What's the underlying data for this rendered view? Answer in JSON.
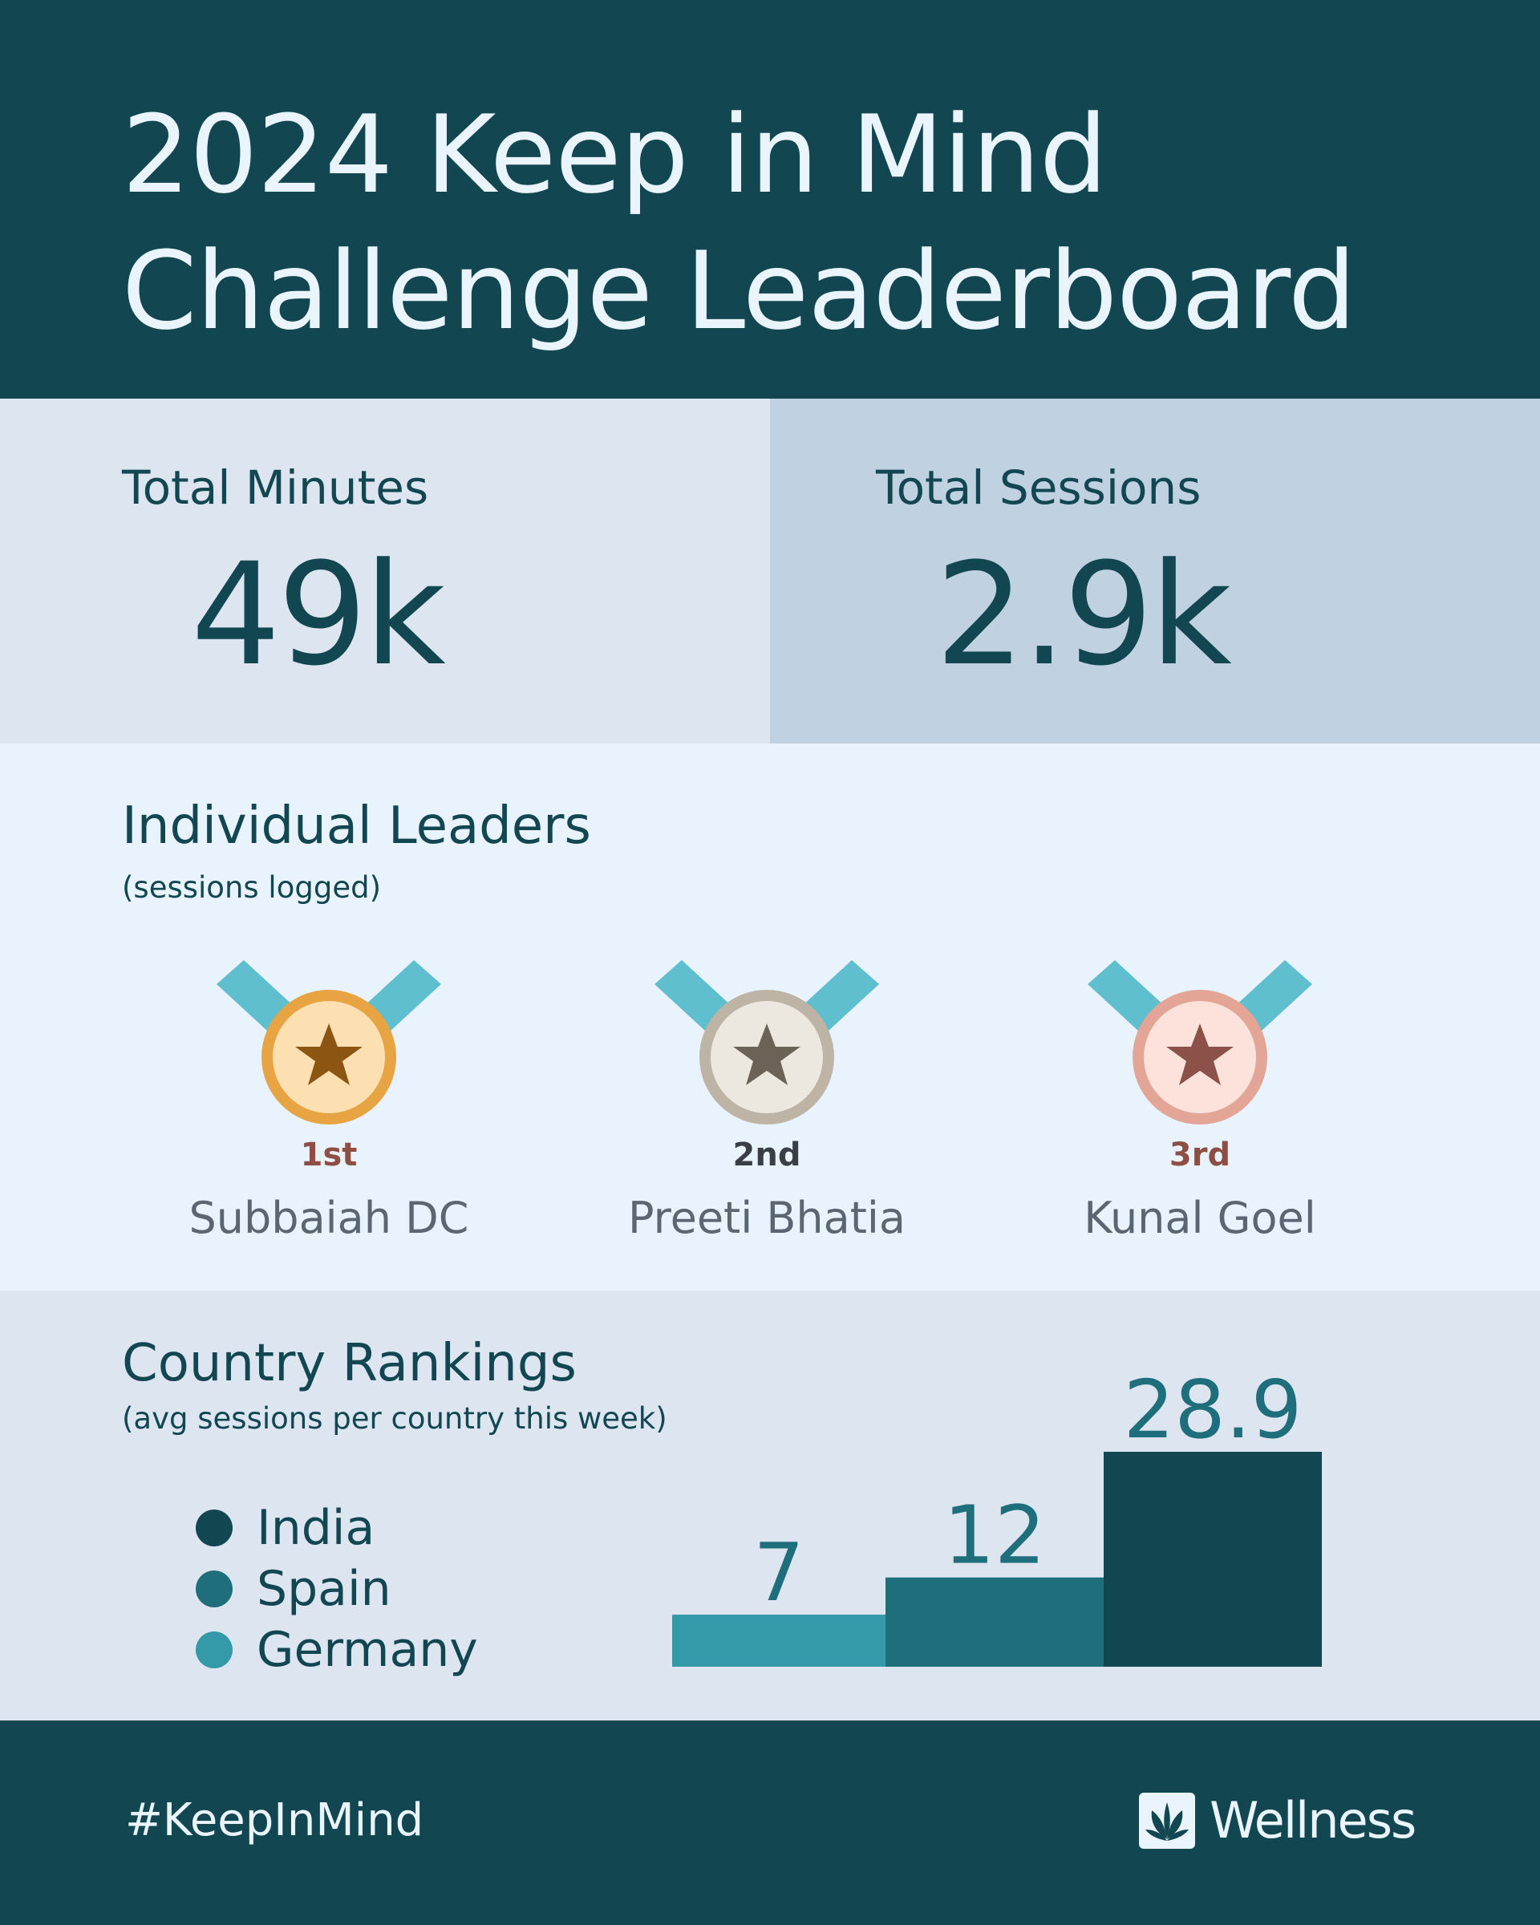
{
  "header": {
    "title_line1": "2024 Keep in Mind",
    "title_line2": "Challenge Leaderboard"
  },
  "stats": {
    "minutes": {
      "label": "Total Minutes",
      "value": "49k"
    },
    "sessions": {
      "label": "Total Sessions",
      "value": "2.9k"
    }
  },
  "leaders": {
    "title": "Individual Leaders",
    "subtitle": "(sessions logged)",
    "items": [
      {
        "rank": "1st",
        "name": "Subbaiah DC",
        "medal": "gold-medal-icon",
        "rank_color": "#8f4e43",
        "ring": "#e8a443",
        "face": "#fde0b1",
        "star": "#8c5512"
      },
      {
        "rank": "2nd",
        "name": "Preeti Bhatia",
        "medal": "silver-medal-icon",
        "rank_color": "#3a3f45",
        "ring": "#beb4a5",
        "face": "#ece8df",
        "star": "#6b6356"
      },
      {
        "rank": "3rd",
        "name": "Kunal Goel",
        "medal": "bronze-medal-icon",
        "rank_color": "#8f4e43",
        "ring": "#e3a596",
        "face": "#fde2db",
        "star": "#8c5148"
      }
    ],
    "ribbon_color": "#60bfce"
  },
  "countries": {
    "title": "Country Rankings",
    "subtitle": "(avg sessions per country this week)",
    "legend": [
      {
        "label": "India",
        "color": "#124752"
      },
      {
        "label": "Spain",
        "color": "#1e6e7c"
      },
      {
        "label": "Germany",
        "color": "#3499a8"
      }
    ]
  },
  "chart_data": {
    "type": "bar",
    "categories": [
      "Germany",
      "Spain",
      "India"
    ],
    "values": [
      7,
      12,
      28.9
    ],
    "labels": [
      "7",
      "12",
      "28.9"
    ],
    "colors": [
      "#3499a8",
      "#1e6e7c",
      "#124752"
    ],
    "ylim": [
      0,
      28.9
    ],
    "grid": false,
    "legend_placement": "left"
  },
  "footer": {
    "hashtag": "#KeepInMind",
    "brand": "Wellness"
  }
}
